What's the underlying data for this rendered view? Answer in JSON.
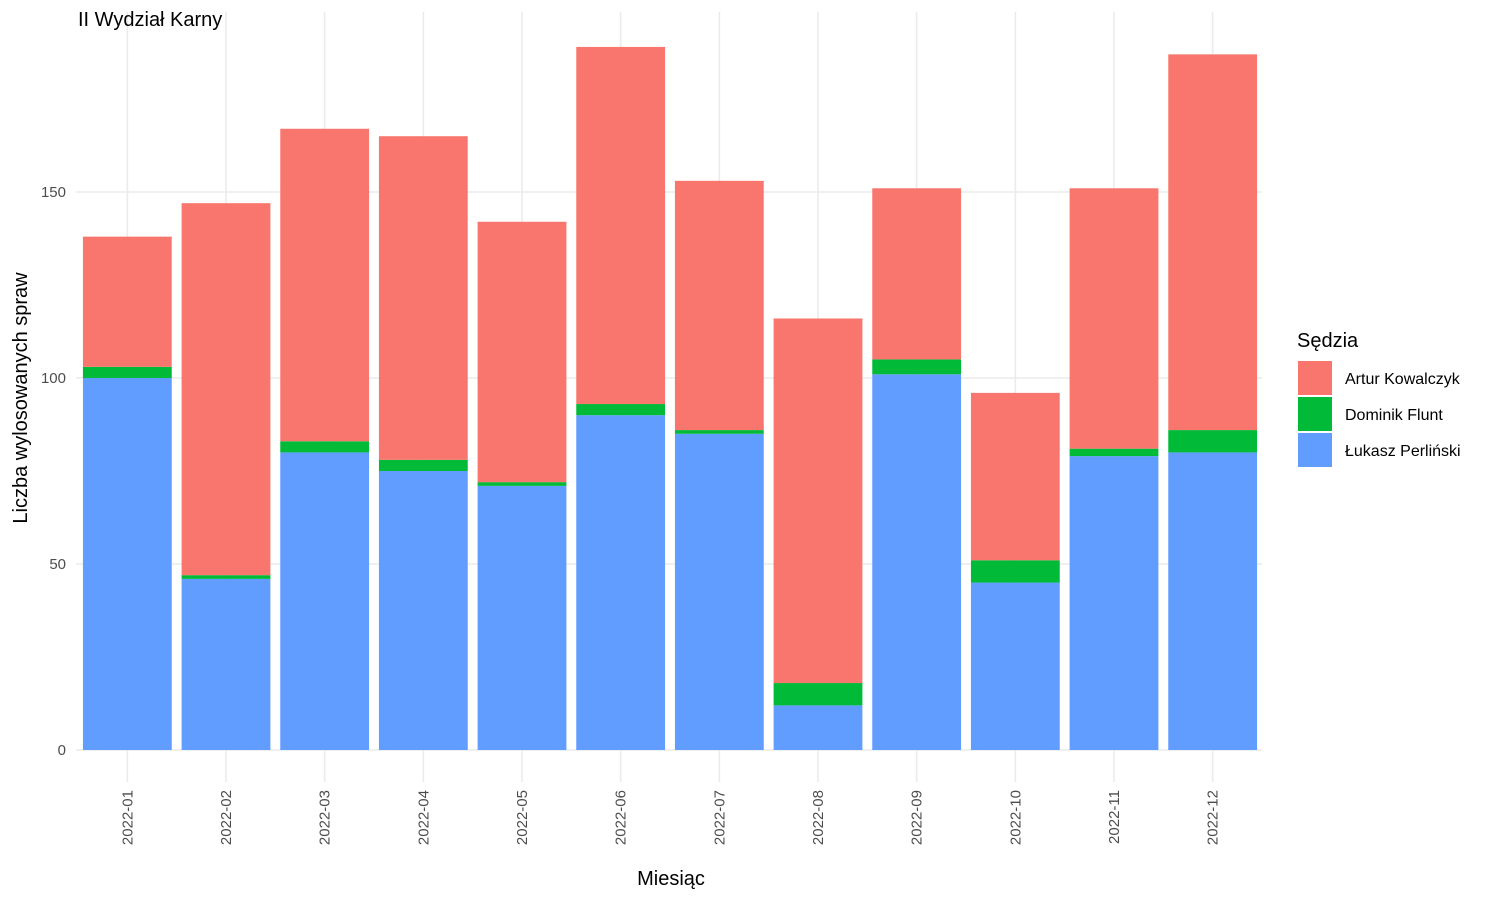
{
  "chart_data": {
    "type": "bar",
    "stacked": true,
    "title": "II Wydział Karny",
    "xlabel": "Miesiąc",
    "ylabel": "Liczba wylosowanych spraw",
    "ylim": [
      0,
      200
    ],
    "yticks": [
      0,
      50,
      100,
      150
    ],
    "grid": true,
    "legend": {
      "title": "Sędzia",
      "placement": "right"
    },
    "categories": [
      "2022-01",
      "2022-02",
      "2022-03",
      "2022-04",
      "2022-05",
      "2022-06",
      "2022-07",
      "2022-08",
      "2022-09",
      "2022-10",
      "2022-11",
      "2022-12"
    ],
    "series": [
      {
        "name": "Łukasz Perliński",
        "color": "#619CFF",
        "values": [
          100,
          46,
          80,
          75,
          71,
          90,
          85,
          12,
          101,
          45,
          79,
          80
        ]
      },
      {
        "name": "Dominik Flunt",
        "color": "#00BA38",
        "values": [
          3,
          1,
          3,
          3,
          1,
          3,
          1,
          6,
          4,
          6,
          2,
          6
        ]
      },
      {
        "name": "Artur Kowalczyk",
        "color": "#F8766D",
        "values": [
          35,
          100,
          84,
          87,
          70,
          96,
          67,
          98,
          46,
          45,
          70,
          101
        ]
      }
    ],
    "legend_order": [
      "Artur Kowalczyk",
      "Dominik Flunt",
      "Łukasz Perliński"
    ]
  }
}
